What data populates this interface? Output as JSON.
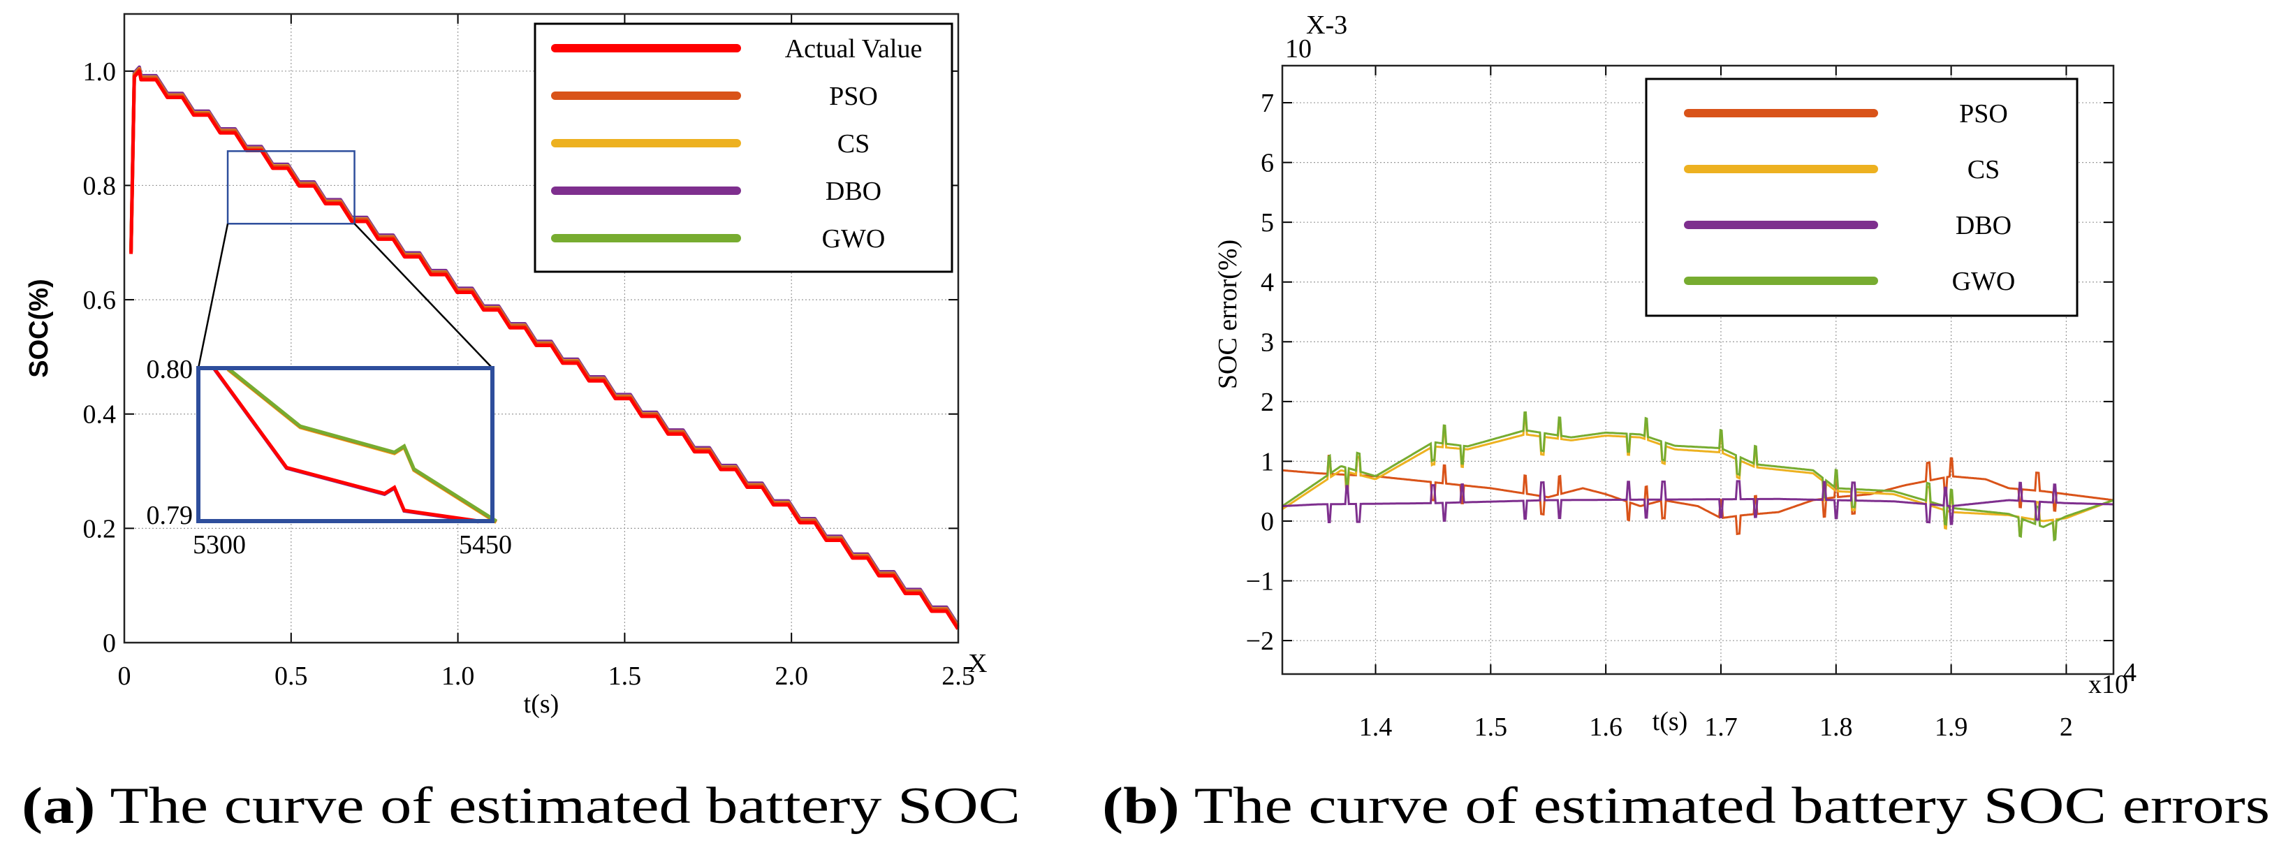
{
  "chart_data": [
    {
      "type": "line",
      "panel": "a",
      "caption_label": "(a)",
      "caption_text": "The curve of estimated battery SOC",
      "xlabel": "t(s)",
      "ylabel": "SOC(%)",
      "x_multiplier_label": "X",
      "xlim": [
        0,
        2.5
      ],
      "ylim": [
        0,
        1.1
      ],
      "xticks": [
        0,
        0.5,
        1.0,
        1.5,
        2.0,
        2.5
      ],
      "xtick_labels": [
        "0",
        "0.5",
        "1.0",
        "1.5",
        "2.0",
        "2.5"
      ],
      "yticks": [
        0,
        0.2,
        0.4,
        0.6,
        0.8,
        1.0
      ],
      "ytick_labels": [
        "0",
        "0.2",
        "0.4",
        "0.6",
        "0.8",
        "1.0"
      ],
      "grid": true,
      "legend_position": "top-right",
      "actual": {
        "x": [
          0.02,
          0.03,
          0.045,
          0.05,
          0.095,
          0.129,
          0.174,
          0.208,
          0.253,
          0.287,
          0.332,
          0.366,
          0.411,
          0.445,
          0.49,
          0.524,
          0.569,
          0.603,
          0.648,
          0.682,
          0.727,
          0.761,
          0.806,
          0.84,
          0.885,
          0.919,
          0.964,
          0.998,
          1.043,
          1.077,
          1.122,
          1.156,
          1.201,
          1.235,
          1.28,
          1.314,
          1.359,
          1.393,
          1.438,
          1.472,
          1.517,
          1.551,
          1.596,
          1.63,
          1.675,
          1.709,
          1.754,
          1.788,
          1.833,
          1.867,
          1.912,
          1.946,
          1.991,
          2.025,
          2.07,
          2.104,
          2.149,
          2.183,
          2.228,
          2.262,
          2.307,
          2.341,
          2.386,
          2.42,
          2.465,
          2.499
        ],
        "y": [
          0.68,
          0.99,
          1.0,
          0.985,
          0.985,
          0.954,
          0.954,
          0.923,
          0.923,
          0.892,
          0.892,
          0.861,
          0.861,
          0.83,
          0.83,
          0.799,
          0.799,
          0.768,
          0.768,
          0.737,
          0.737,
          0.706,
          0.706,
          0.675,
          0.675,
          0.644,
          0.644,
          0.613,
          0.613,
          0.582,
          0.582,
          0.551,
          0.551,
          0.52,
          0.52,
          0.489,
          0.489,
          0.458,
          0.458,
          0.427,
          0.427,
          0.396,
          0.396,
          0.365,
          0.365,
          0.334,
          0.334,
          0.303,
          0.303,
          0.272,
          0.272,
          0.241,
          0.241,
          0.21,
          0.21,
          0.179,
          0.179,
          0.148,
          0.148,
          0.117,
          0.117,
          0.086,
          0.086,
          0.055,
          0.055,
          0.024
        ]
      },
      "series": [
        {
          "name": "Actual Value",
          "color": "#FF0000",
          "offset_from_actual": 0
        },
        {
          "name": "PSO",
          "color": "#D95319",
          "offset_from_actual": 0.003
        },
        {
          "name": "CS",
          "color": "#EDB120",
          "offset_from_actual": 0.004
        },
        {
          "name": "DBO",
          "color": "#7E2F8E",
          "offset_from_actual": 0.007
        },
        {
          "name": "GWO",
          "color": "#77AC30",
          "offset_from_actual": 0.003
        }
      ],
      "zoom_region": {
        "x": [
          0.31,
          0.69
        ],
        "y": [
          0.733,
          0.86
        ]
      },
      "inset": {
        "xlim": [
          5300,
          5450
        ],
        "ylim": [
          0.79,
          0.8
        ],
        "xtick_labels": [
          "5300",
          "5450"
        ],
        "ytick_labels": [
          "0.80",
          "0.79"
        ],
        "lower": {
          "x": [
            5308,
            5345,
            5395,
            5400,
            5405,
            5443
          ],
          "y": [
            0.8,
            0.7935,
            0.7918,
            0.7922,
            0.7907,
            0.79
          ]
        },
        "upper": {
          "x": [
            5315,
            5352,
            5400,
            5405,
            5410,
            5452
          ],
          "y": [
            0.8,
            0.7962,
            0.7945,
            0.7949,
            0.7934,
            0.79
          ]
        }
      },
      "border_color": "#2E4E9C"
    },
    {
      "type": "line",
      "panel": "b",
      "caption_label": "(b)",
      "caption_text": "The curve of estimated battery SOC errors",
      "xlabel": "t(s)",
      "ylabel": "SOC error(%)",
      "x_multiplier_label": "x10",
      "x_multiplier_exp": "4",
      "y_multiplier_label": "X-3",
      "y_multiplier_base": "10",
      "xlim": [
        1.319,
        2.041
      ],
      "ylim": [
        -2.56,
        7.62
      ],
      "xticks": [
        1.4,
        1.5,
        1.6,
        1.7,
        1.8,
        1.9,
        2.0
      ],
      "xtick_labels": [
        "1.4",
        "1.5",
        "1.6",
        "1.7",
        "1.8",
        "1.9",
        "2"
      ],
      "yticks": [
        -2,
        -1,
        0,
        1,
        2,
        3,
        4,
        5,
        6,
        7
      ],
      "ytick_labels": [
        "−2",
        "−1",
        "0",
        "1",
        "2",
        "3",
        "4",
        "5",
        "6",
        "7"
      ],
      "grid": true,
      "legend_position": "top-right",
      "spikes": {
        "x": [
          1.36,
          1.375,
          1.385,
          1.45,
          1.46,
          1.475,
          1.53,
          1.545,
          1.56,
          1.62,
          1.635,
          1.65,
          1.7,
          1.715,
          1.73,
          1.79,
          1.8,
          1.815,
          1.88,
          1.895,
          1.9,
          1.96,
          1.975,
          1.99
        ],
        "amplitude": 0.3
      },
      "series": [
        {
          "name": "PSO",
          "color": "#D95319",
          "x": [
            1.319,
            1.35,
            1.4,
            1.45,
            1.5,
            1.55,
            1.58,
            1.6,
            1.63,
            1.65,
            1.68,
            1.7,
            1.72,
            1.75,
            1.78,
            1.8,
            1.83,
            1.86,
            1.9,
            1.93,
            1.95,
            1.98,
            2.0,
            2.041
          ],
          "y": [
            0.85,
            0.8,
            0.75,
            0.65,
            0.55,
            0.4,
            0.55,
            0.45,
            0.25,
            0.35,
            0.25,
            0.05,
            0.1,
            0.15,
            0.35,
            0.4,
            0.45,
            0.6,
            0.75,
            0.7,
            0.55,
            0.5,
            0.45,
            0.35
          ]
        },
        {
          "name": "CS",
          "color": "#EDB120",
          "x": [
            1.319,
            1.37,
            1.4,
            1.45,
            1.48,
            1.53,
            1.57,
            1.6,
            1.63,
            1.66,
            1.7,
            1.73,
            1.78,
            1.8,
            1.85,
            1.9,
            1.95,
            1.98,
            2.0,
            2.041
          ],
          "y": [
            0.2,
            0.85,
            0.7,
            1.25,
            1.2,
            1.45,
            1.35,
            1.43,
            1.4,
            1.2,
            1.15,
            0.9,
            0.8,
            0.5,
            0.45,
            0.15,
            0.1,
            0.0,
            0.05,
            0.35
          ]
        },
        {
          "name": "DBO",
          "color": "#7E2F8E",
          "x": [
            1.319,
            1.35,
            1.45,
            1.55,
            1.65,
            1.75,
            1.85,
            1.9,
            1.95,
            2.0,
            2.041
          ],
          "y": [
            0.25,
            0.28,
            0.3,
            0.35,
            0.36,
            0.37,
            0.33,
            0.25,
            0.35,
            0.3,
            0.28
          ]
        },
        {
          "name": "GWO",
          "color": "#77AC30",
          "x": [
            1.319,
            1.37,
            1.4,
            1.45,
            1.48,
            1.53,
            1.57,
            1.6,
            1.63,
            1.66,
            1.7,
            1.73,
            1.78,
            1.8,
            1.85,
            1.9,
            1.95,
            1.98,
            2.0,
            2.041
          ],
          "y": [
            0.25,
            0.92,
            0.75,
            1.32,
            1.25,
            1.52,
            1.4,
            1.48,
            1.45,
            1.26,
            1.22,
            0.95,
            0.85,
            0.55,
            0.5,
            0.22,
            0.12,
            -0.1,
            0.08,
            0.35
          ]
        }
      ]
    }
  ]
}
